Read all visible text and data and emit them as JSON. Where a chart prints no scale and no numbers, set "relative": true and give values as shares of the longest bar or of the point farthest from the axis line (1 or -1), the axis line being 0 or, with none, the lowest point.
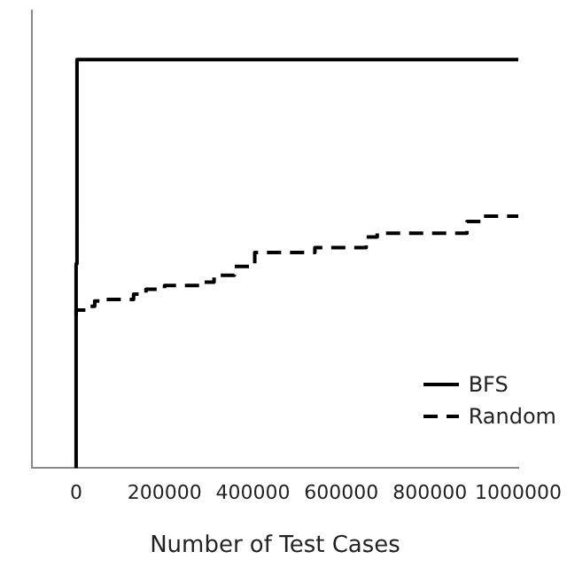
{
  "chart_data": {
    "type": "step",
    "xlabel": "Number of Test Cases",
    "relative": true,
    "xlim": [
      -100000,
      1000000
    ],
    "xticks": [
      0,
      200000,
      400000,
      600000,
      800000,
      1000000
    ],
    "grid": false,
    "legend": "bottom right",
    "marker": "none",
    "tick_labels": "x",
    "series": [
      {
        "name": "BFS",
        "color": "#000000",
        "line_style": "solid",
        "x": [
          0,
          2000,
          5000,
          1000000
        ],
        "values": [
          0,
          0.5,
          1,
          1
        ]
      },
      {
        "name": "Random",
        "color": "#000000",
        "line_style": "dashed",
        "x": [
          0,
          24600,
          42100,
          66700,
          130000,
          158000,
          200000,
          288000,
          312000,
          358000,
          404000,
          540000,
          656000,
          681000,
          884000,
          919000,
          954000,
          1000000
        ],
        "values": [
          0.375,
          0.387,
          0.396,
          0.409,
          0.413,
          0.426,
          0.438,
          0.447,
          0.455,
          0.472,
          0.494,
          0.528,
          0.54,
          0.566,
          0.575,
          0.604,
          0.617,
          0.617
        ]
      }
    ]
  }
}
